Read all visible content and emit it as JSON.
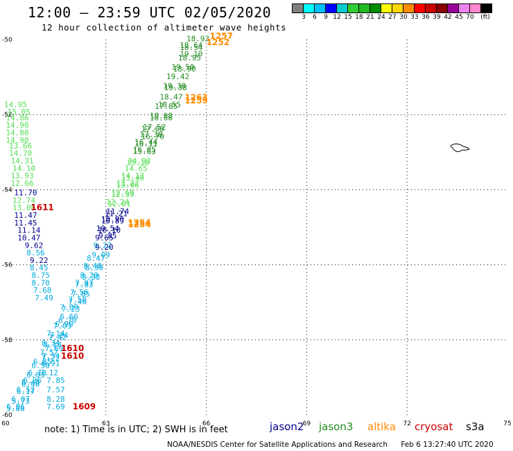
{
  "title": "12:00 – 23:59 UTC 02/05/2020",
  "subtitle": "12 hour collection of altimeter wave heights",
  "legend": {
    "colors": [
      "#808080",
      "#00ffff",
      "#00bfff",
      "#0000ff",
      "#00cdcd",
      "#32cd32",
      "#22bb22",
      "#008b00",
      "#ffff00",
      "#ffd700",
      "#ff8c00",
      "#ff0000",
      "#cd0000",
      "#8b0000",
      "#990099",
      "#ee82ee",
      "#ff88cc",
      "#000000"
    ],
    "labels": [
      "3",
      "6",
      "9",
      "12",
      "15",
      "18",
      "21",
      "24",
      "27",
      "30",
      "33",
      "36",
      "39",
      "42",
      "45",
      "70",
      "(ft)"
    ]
  },
  "axes": {
    "x_ticks": [
      "60",
      "63",
      "66",
      "69",
      "72",
      "75"
    ],
    "y_ticks": [
      "-50",
      "-52",
      "-54",
      "-56",
      "-58",
      "-60"
    ]
  },
  "track_colors": {
    "jason2": "#00008b",
    "jason3": "#228b22",
    "altika": "#ff8c00",
    "cryosat": "#cc0000",
    "s3a": "#000000",
    "light_green": "#55dd55",
    "light_blue": "#00aadd"
  },
  "points": [
    {
      "v": "18.93",
      "lon": 65.75,
      "lat": -50.05,
      "c": "jason3"
    },
    {
      "v": "18.64",
      "lon": 65.55,
      "lat": -50.22,
      "c": "jason3"
    },
    {
      "v": "18.54",
      "lon": 65.55,
      "lat": -50.28,
      "c": "jason3"
    },
    {
      "v": "19.10",
      "lon": 65.55,
      "lat": -50.45,
      "c": "jason3"
    },
    {
      "v": "18.95",
      "lon": 65.5,
      "lat": -50.55,
      "c": "jason3"
    },
    {
      "v": "19.50",
      "lon": 65.3,
      "lat": -50.8,
      "c": "jason3"
    },
    {
      "v": "18.90",
      "lon": 65.35,
      "lat": -50.85,
      "c": "jason3"
    },
    {
      "v": "19.42",
      "lon": 65.15,
      "lat": -51.05,
      "c": "jason3"
    },
    {
      "v": "19.30",
      "lon": 65.05,
      "lat": -51.3,
      "c": "jason3"
    },
    {
      "v": "19.38",
      "lon": 65.08,
      "lat": -51.35,
      "c": "jason3"
    },
    {
      "v": "18.47",
      "lon": 64.95,
      "lat": -51.6,
      "c": "jason3"
    },
    {
      "v": "18.55",
      "lon": 64.9,
      "lat": -51.8,
      "c": "jason3"
    },
    {
      "v": "17.85",
      "lon": 64.8,
      "lat": -51.85,
      "c": "jason3"
    },
    {
      "v": "18.08",
      "lon": 64.65,
      "lat": -52.1,
      "c": "jason3"
    },
    {
      "v": "16.68",
      "lon": 64.65,
      "lat": -52.15,
      "c": "jason3"
    },
    {
      "v": "17.52",
      "lon": 64.45,
      "lat": -52.4,
      "c": "jason3"
    },
    {
      "v": "17.08",
      "lon": 64.4,
      "lat": -52.45,
      "c": "jason3"
    },
    {
      "v": "17.38",
      "lon": 64.35,
      "lat": -52.6,
      "c": "jason3"
    },
    {
      "v": "16.70",
      "lon": 64.4,
      "lat": -52.65,
      "c": "jason3"
    },
    {
      "v": "16.44",
      "lon": 64.2,
      "lat": -52.8,
      "c": "jason3"
    },
    {
      "v": "16.11",
      "lon": 64.2,
      "lat": -52.85,
      "c": "jason3"
    },
    {
      "v": "16.05",
      "lon": 64.15,
      "lat": -53.0,
      "c": "jason3"
    },
    {
      "v": "15.63",
      "lon": 64.15,
      "lat": -53.05,
      "c": "jason3"
    },
    {
      "v": "14.93",
      "lon": 64.0,
      "lat": -53.3,
      "c": "light_green"
    },
    {
      "v": "15.18",
      "lon": 63.95,
      "lat": -53.35,
      "c": "light_green"
    },
    {
      "v": "14.65",
      "lon": 63.9,
      "lat": -53.5,
      "c": "light_green"
    },
    {
      "v": "14.13",
      "lon": 63.8,
      "lat": -53.7,
      "c": "light_green"
    },
    {
      "v": "13.48",
      "lon": 63.8,
      "lat": -53.75,
      "c": "light_green"
    },
    {
      "v": "13.27",
      "lon": 63.65,
      "lat": -53.9,
      "c": "light_green"
    },
    {
      "v": "13.06",
      "lon": 63.65,
      "lat": -53.95,
      "c": "light_green"
    },
    {
      "v": "12.69",
      "lon": 63.5,
      "lat": -54.15,
      "c": "light_green"
    },
    {
      "v": "12.39",
      "lon": 63.5,
      "lat": -54.2,
      "c": "light_green"
    },
    {
      "v": "12.24",
      "lon": 63.35,
      "lat": -54.4,
      "c": "light_green"
    },
    {
      "v": "12.01",
      "lon": 63.4,
      "lat": -54.45,
      "c": "light_green"
    },
    {
      "v": "11.74",
      "lon": 63.35,
      "lat": -54.65,
      "c": "jason2"
    },
    {
      "v": "11.21",
      "lon": 63.3,
      "lat": -54.7,
      "c": "jason2"
    },
    {
      "v": "10.90",
      "lon": 63.2,
      "lat": -54.85,
      "c": "jason2"
    },
    {
      "v": "10.89",
      "lon": 63.2,
      "lat": -54.9,
      "c": "jason2"
    },
    {
      "v": "10.54",
      "lon": 63.05,
      "lat": -55.1,
      "c": "jason2"
    },
    {
      "v": "10.10",
      "lon": 63.1,
      "lat": -55.15,
      "c": "jason2"
    },
    {
      "v": "9.85",
      "lon": 63.05,
      "lat": -55.3,
      "c": "jason2"
    },
    {
      "v": "9.65",
      "lon": 62.95,
      "lat": -55.35,
      "c": "jason2"
    },
    {
      "v": "9.22",
      "lon": 62.9,
      "lat": -55.55,
      "c": "light_blue"
    },
    {
      "v": "9.20",
      "lon": 62.95,
      "lat": -55.6,
      "c": "jason2"
    },
    {
      "v": "9.09",
      "lon": 62.85,
      "lat": -55.8,
      "c": "light_blue"
    },
    {
      "v": "8.47",
      "lon": 62.7,
      "lat": -55.9,
      "c": "light_blue"
    },
    {
      "v": "8.48",
      "lon": 62.6,
      "lat": -56.1,
      "c": "light_blue"
    },
    {
      "v": "8.39",
      "lon": 62.65,
      "lat": -56.15,
      "c": "light_blue"
    },
    {
      "v": "8.20",
      "lon": 62.5,
      "lat": -56.35,
      "c": "light_blue"
    },
    {
      "v": "8.38",
      "lon": 62.55,
      "lat": -56.4,
      "c": "light_blue"
    },
    {
      "v": "7.97",
      "lon": 62.35,
      "lat": -56.55,
      "c": "light_blue"
    },
    {
      "v": "7.83",
      "lon": 62.35,
      "lat": -56.6,
      "c": "light_blue"
    },
    {
      "v": "7.56",
      "lon": 62.2,
      "lat": -56.8,
      "c": "light_blue"
    },
    {
      "v": "7.85",
      "lon": 62.25,
      "lat": -56.85,
      "c": "light_blue"
    },
    {
      "v": "7.50",
      "lon": 62.15,
      "lat": -57.0,
      "c": "light_blue"
    },
    {
      "v": "7.46",
      "lon": 62.15,
      "lat": -57.05,
      "c": "light_blue"
    },
    {
      "v": "7.09",
      "lon": 61.9,
      "lat": -57.2,
      "c": "light_blue"
    },
    {
      "v": "7.23",
      "lon": 61.95,
      "lat": -57.25,
      "c": "light_blue"
    },
    {
      "v": "6.66",
      "lon": 61.9,
      "lat": -57.45,
      "c": "light_blue"
    },
    {
      "v": "6.70",
      "lon": 61.85,
      "lat": -57.55,
      "c": "light_blue"
    },
    {
      "v": "6.99",
      "lon": 61.75,
      "lat": -57.65,
      "c": "light_blue"
    },
    {
      "v": "7.03",
      "lon": 61.7,
      "lat": -57.7,
      "c": "light_blue"
    },
    {
      "v": "7.14",
      "lon": 61.5,
      "lat": -57.9,
      "c": "light_blue"
    },
    {
      "v": "7.24",
      "lon": 61.6,
      "lat": -57.95,
      "c": "light_blue"
    },
    {
      "v": "7.42",
      "lon": 61.55,
      "lat": -58.0,
      "c": "light_blue"
    },
    {
      "v": "8.34",
      "lon": 61.35,
      "lat": -58.15,
      "c": "light_blue"
    },
    {
      "v": "8.18",
      "lon": 61.4,
      "lat": -58.2,
      "c": "light_blue"
    },
    {
      "v": "7.69",
      "lon": 61.45,
      "lat": -58.3,
      "c": "light_blue"
    },
    {
      "v": "7.57",
      "lon": 61.3,
      "lat": -58.4,
      "c": "light_blue"
    },
    {
      "v": "7.34",
      "lon": 61.35,
      "lat": -58.5,
      "c": "light_blue"
    },
    {
      "v": "7.22",
      "lon": 61.35,
      "lat": -58.55,
      "c": "light_blue"
    },
    {
      "v": "6.85",
      "lon": 61.1,
      "lat": -58.65,
      "c": "light_blue"
    },
    {
      "v": "6.91",
      "lon": 61.35,
      "lat": -58.7,
      "c": "light_blue"
    },
    {
      "v": "6.50",
      "lon": 61.05,
      "lat": -58.75,
      "c": "light_blue"
    },
    {
      "v": "6.13",
      "lon": 60.95,
      "lat": -58.95,
      "c": "light_blue"
    },
    {
      "v": "7.12",
      "lon": 61.3,
      "lat": -58.95,
      "c": "light_blue"
    },
    {
      "v": "6.03",
      "lon": 60.9,
      "lat": -59.0,
      "c": "light_blue"
    },
    {
      "v": "6.26",
      "lon": 60.8,
      "lat": -59.15,
      "c": "light_blue"
    },
    {
      "v": "6.40",
      "lon": 60.75,
      "lat": -59.2,
      "c": "light_blue"
    },
    {
      "v": "6.46",
      "lon": 60.75,
      "lat": -59.25,
      "c": "light_blue"
    },
    {
      "v": "7.85",
      "lon": 61.5,
      "lat": -59.15,
      "c": "light_blue"
    },
    {
      "v": "6.52",
      "lon": 60.6,
      "lat": -59.4,
      "c": "light_blue"
    },
    {
      "v": "6.17",
      "lon": 60.6,
      "lat": -59.45,
      "c": "light_blue"
    },
    {
      "v": "7.57",
      "lon": 61.5,
      "lat": -59.4,
      "c": "light_blue"
    },
    {
      "v": "6.07",
      "lon": 60.45,
      "lat": -59.65,
      "c": "light_blue"
    },
    {
      "v": "5.73",
      "lon": 60.45,
      "lat": -59.7,
      "c": "light_blue"
    },
    {
      "v": "8.28",
      "lon": 61.5,
      "lat": -59.65,
      "c": "light_blue"
    },
    {
      "v": "6.06",
      "lon": 60.3,
      "lat": -59.85,
      "c": "light_blue"
    },
    {
      "v": "5.88",
      "lon": 60.3,
      "lat": -59.9,
      "c": "light_blue"
    },
    {
      "v": "7.69",
      "lon": 61.5,
      "lat": -59.85,
      "c": "light_blue"
    },
    {
      "v": "14.95",
      "lon": 60.3,
      "lat": -51.8,
      "c": "light_green"
    },
    {
      "v": "15.05",
      "lon": 60.4,
      "lat": -52.0,
      "c": "light_green"
    },
    {
      "v": "14.86",
      "lon": 60.35,
      "lat": -52.15,
      "c": "light_green"
    },
    {
      "v": "14.90",
      "lon": 60.35,
      "lat": -52.35,
      "c": "light_green"
    },
    {
      "v": "14.80",
      "lon": 60.35,
      "lat": -52.55,
      "c": "light_green"
    },
    {
      "v": "14.90",
      "lon": 60.35,
      "lat": -52.75,
      "c": "light_green"
    },
    {
      "v": "13.66",
      "lon": 60.45,
      "lat": -52.9,
      "c": "light_green"
    },
    {
      "v": "14.70",
      "lon": 60.45,
      "lat": -53.1,
      "c": "light_green"
    },
    {
      "v": "14.31",
      "lon": 60.5,
      "lat": -53.3,
      "c": "light_green"
    },
    {
      "v": "14.10",
      "lon": 60.55,
      "lat": -53.5,
      "c": "light_green"
    },
    {
      "v": "13.93",
      "lon": 60.5,
      "lat": -53.7,
      "c": "light_green"
    },
    {
      "v": "12.66",
      "lon": 60.5,
      "lat": -53.9,
      "c": "light_green"
    },
    {
      "v": "11.70",
      "lon": 60.6,
      "lat": -54.15,
      "c": "jason2"
    },
    {
      "v": "12.74",
      "lon": 60.55,
      "lat": -54.35,
      "c": "light_green"
    },
    {
      "v": "13.06",
      "lon": 60.55,
      "lat": -54.55,
      "c": "light_green"
    },
    {
      "v": "11.47",
      "lon": 60.6,
      "lat": -54.75,
      "c": "jason2"
    },
    {
      "v": "11.45",
      "lon": 60.6,
      "lat": -54.95,
      "c": "jason2"
    },
    {
      "v": "11.14",
      "lon": 60.7,
      "lat": -55.15,
      "c": "jason2"
    },
    {
      "v": "10.47",
      "lon": 60.7,
      "lat": -55.35,
      "c": "jason2"
    },
    {
      "v": "9.62",
      "lon": 60.85,
      "lat": -55.55,
      "c": "jason2"
    },
    {
      "v": "8.56",
      "lon": 60.9,
      "lat": -55.75,
      "c": "light_blue"
    },
    {
      "v": "9.22",
      "lon": 61.0,
      "lat": -55.95,
      "c": "jason2"
    },
    {
      "v": "8.45",
      "lon": 61.0,
      "lat": -56.15,
      "c": "light_blue"
    },
    {
      "v": "8.75",
      "lon": 61.05,
      "lat": -56.35,
      "c": "light_blue"
    },
    {
      "v": "8.70",
      "lon": 61.05,
      "lat": -56.55,
      "c": "light_blue"
    },
    {
      "v": "7.68",
      "lon": 61.1,
      "lat": -56.75,
      "c": "light_blue"
    },
    {
      "v": "7.49",
      "lon": 61.15,
      "lat": -56.95,
      "c": "light_blue"
    },
    {
      "v": "1257",
      "lon": 66.45,
      "lat": -49.98,
      "c": "altika"
    },
    {
      "v": "1252",
      "lon": 66.35,
      "lat": -50.15,
      "c": "altika"
    },
    {
      "v": "1263",
      "lon": 65.7,
      "lat": -51.62,
      "c": "altika"
    },
    {
      "v": "1259",
      "lon": 65.7,
      "lat": -51.7,
      "c": "altika"
    },
    {
      "v": "1254",
      "lon": 64.0,
      "lat": -54.95,
      "c": "altika"
    },
    {
      "v": "1254",
      "lon": 64.0,
      "lat": -55.0,
      "c": "altika"
    },
    {
      "v": "1611",
      "lon": 61.1,
      "lat": -54.55,
      "c": "cryosat"
    },
    {
      "v": "1610",
      "lon": 62.0,
      "lat": -58.3,
      "c": "cryosat"
    },
    {
      "v": "1610",
      "lon": 62.0,
      "lat": -58.5,
      "c": "cryosat"
    },
    {
      "v": "1609",
      "lon": 62.35,
      "lat": -59.85,
      "c": "cryosat"
    }
  ],
  "note": "note: 1) Time is in UTC; 2) SWH is in feet",
  "missions": [
    {
      "label": "jason2",
      "c": "jason2"
    },
    {
      "label": "jason3",
      "c": "jason3"
    },
    {
      "label": "altika",
      "c": "altika"
    },
    {
      "label": "cryosat",
      "c": "cryosat"
    },
    {
      "label": "s3a",
      "c": "s3a"
    }
  ],
  "footer": {
    "org": "NOAA/NESDIS Center for Satellite Applications and Research",
    "time": "Feb  6 13:27:40 UTC 2020"
  }
}
